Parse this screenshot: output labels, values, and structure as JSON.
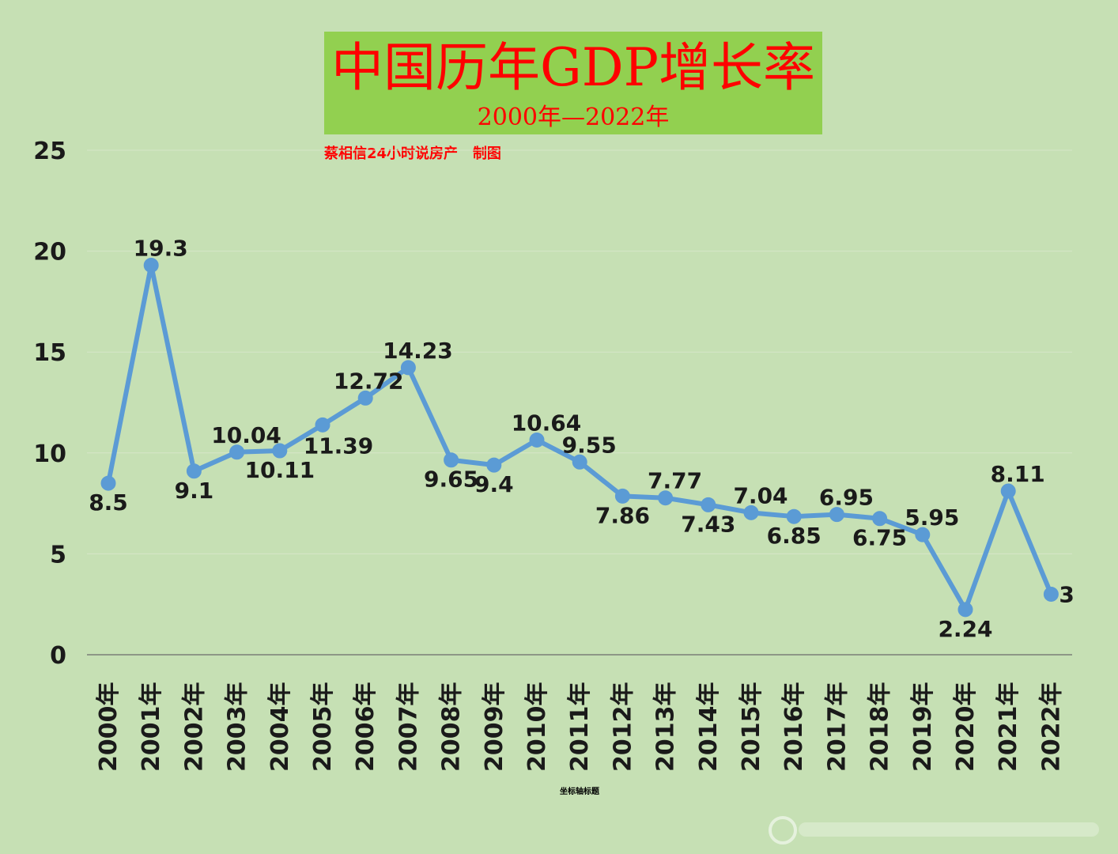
{
  "chart_data": {
    "type": "line",
    "title": "中国历年GDP增长率",
    "subtitle": "2000年—2022年",
    "credit": "蔡相信24小时说房产   制图",
    "xlabel": "坐标轴标题",
    "ylabel": "",
    "ylim": [
      0,
      25
    ],
    "yticks": [
      "0",
      "5",
      "10",
      "15",
      "20",
      "25"
    ],
    "grid": true,
    "legend": "none",
    "categories": [
      "2000年",
      "2001年",
      "2002年",
      "2003年",
      "2004年",
      "2005年",
      "2006年",
      "2007年",
      "2008年",
      "2009年",
      "2010年",
      "2011年",
      "2012年",
      "2013年",
      "2014年",
      "2015年",
      "2016年",
      "2017年",
      "2018年",
      "2019年",
      "2020年",
      "2021年",
      "2022年"
    ],
    "series": [
      {
        "values": [
          8.5,
          19.3,
          9.1,
          10.04,
          10.11,
          11.39,
          12.72,
          14.23,
          9.65,
          9.4,
          10.64,
          9.55,
          7.86,
          7.77,
          7.43,
          7.04,
          6.85,
          6.95,
          6.75,
          5.95,
          2.24,
          8.11,
          3
        ],
        "labels": [
          "8.5",
          "19.3",
          "9.1",
          "10.04",
          "10.11",
          "11.39",
          "12.72",
          "14.23",
          "9.65",
          "9.4",
          "10.64",
          "9.55",
          "7.86",
          "7.77",
          "7.43",
          "7.04",
          "6.85",
          "6.95",
          "6.75",
          "5.95",
          "2.24",
          "8.11",
          "3"
        ],
        "color": "#5b9bd5"
      }
    ]
  },
  "colors": {
    "background": "#c6e0b4",
    "title_box": "#92d050",
    "title_text": "#ff0000",
    "series": "#5b9bd5"
  }
}
